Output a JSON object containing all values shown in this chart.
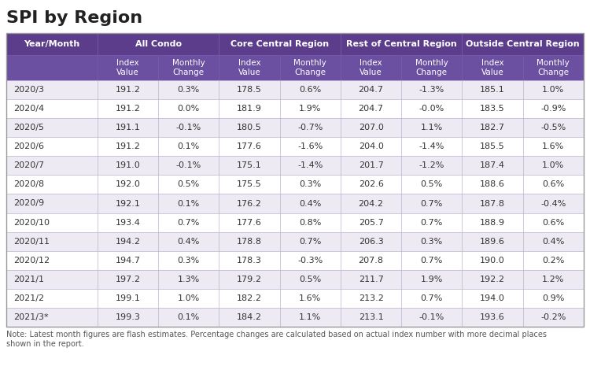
{
  "title": "SPI by Region",
  "note": "Note: Latest month figures are flash estimates. Percentage changes are calculated based on actual index number with more decimal places\nshown in the report.",
  "header_bg": "#5b3d8c",
  "subheader_bg": "#6b4fa0",
  "row_bg_odd": "#eeeaf4",
  "row_bg_even": "#ffffff",
  "border_color": "#b8b0cc",
  "header_text_color": "#ffffff",
  "cell_text_color": "#333333",
  "rows": [
    [
      "2020/3",
      "191.2",
      "0.3%",
      "178.5",
      "0.6%",
      "204.7",
      "-1.3%",
      "185.1",
      "1.0%"
    ],
    [
      "2020/4",
      "191.2",
      "0.0%",
      "181.9",
      "1.9%",
      "204.7",
      "-0.0%",
      "183.5",
      "-0.9%"
    ],
    [
      "2020/5",
      "191.1",
      "-0.1%",
      "180.5",
      "-0.7%",
      "207.0",
      "1.1%",
      "182.7",
      "-0.5%"
    ],
    [
      "2020/6",
      "191.2",
      "0.1%",
      "177.6",
      "-1.6%",
      "204.0",
      "-1.4%",
      "185.5",
      "1.6%"
    ],
    [
      "2020/7",
      "191.0",
      "-0.1%",
      "175.1",
      "-1.4%",
      "201.7",
      "-1.2%",
      "187.4",
      "1.0%"
    ],
    [
      "2020/8",
      "192.0",
      "0.5%",
      "175.5",
      "0.3%",
      "202.6",
      "0.5%",
      "188.6",
      "0.6%"
    ],
    [
      "2020/9",
      "192.1",
      "0.1%",
      "176.2",
      "0.4%",
      "204.2",
      "0.7%",
      "187.8",
      "-0.4%"
    ],
    [
      "2020/10",
      "193.4",
      "0.7%",
      "177.6",
      "0.8%",
      "205.7",
      "0.7%",
      "188.9",
      "0.6%"
    ],
    [
      "2020/11",
      "194.2",
      "0.4%",
      "178.8",
      "0.7%",
      "206.3",
      "0.3%",
      "189.6",
      "0.4%"
    ],
    [
      "2020/12",
      "194.7",
      "0.3%",
      "178.3",
      "-0.3%",
      "207.8",
      "0.7%",
      "190.0",
      "0.2%"
    ],
    [
      "2021/1",
      "197.2",
      "1.3%",
      "179.2",
      "0.5%",
      "211.7",
      "1.9%",
      "192.2",
      "1.2%"
    ],
    [
      "2021/2",
      "199.1",
      "1.0%",
      "182.2",
      "1.6%",
      "213.2",
      "0.7%",
      "194.0",
      "0.9%"
    ],
    [
      "2021/3*",
      "199.3",
      "0.1%",
      "184.2",
      "1.1%",
      "213.1",
      "-0.1%",
      "193.6",
      "-0.2%"
    ]
  ],
  "col_widths_raw": [
    1.5,
    1.0,
    1.0,
    1.0,
    1.0,
    1.0,
    1.0,
    1.0,
    1.0
  ],
  "title_fontsize": 16,
  "header_fontsize": 8,
  "subheader_fontsize": 7.5,
  "cell_fontsize": 8,
  "note_fontsize": 7
}
